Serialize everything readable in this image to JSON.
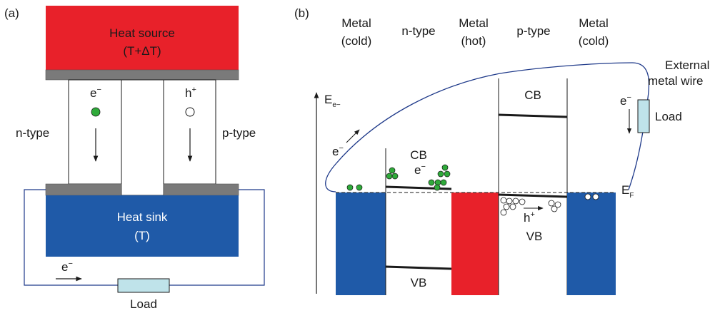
{
  "panel_a": {
    "tag": "(a)",
    "heat_source": {
      "line1": "Heat source",
      "line2": "(T+ΔT)"
    },
    "heat_sink": {
      "line1": "Heat sink",
      "line2": "(T)"
    },
    "n_label": "n-type",
    "p_label": "p-type",
    "electron": {
      "base": "e",
      "sup": "−"
    },
    "hole": {
      "base": "h",
      "sup": "+"
    },
    "wire_electron": {
      "base": "e",
      "sup": "−"
    },
    "load": "Load"
  },
  "panel_b": {
    "tag": "(b)",
    "columns": [
      {
        "line1": "Metal",
        "line2": "(cold)"
      },
      {
        "line1": "n-type",
        "line2": ""
      },
      {
        "line1": "Metal",
        "line2": "(hot)"
      },
      {
        "line1": "p-type",
        "line2": ""
      },
      {
        "line1": "Metal",
        "line2": "(cold)"
      }
    ],
    "energy_axis": {
      "base": "E",
      "sub": "e−"
    },
    "cb_n": "CB",
    "vb_n": "VB",
    "cb_p": "CB",
    "vb_p": "VB",
    "electron_n": {
      "base": "e",
      "sup": "−"
    },
    "hole_p": {
      "base": "h",
      "sup": "+"
    },
    "electron_wire": {
      "base": "e",
      "sup": "−"
    },
    "electron_load": {
      "base": "e",
      "sup": "−"
    },
    "external_wire": {
      "line1": "External",
      "line2": "metal wire"
    },
    "load": "Load",
    "fermi": {
      "base": "E",
      "sub": "F"
    }
  },
  "colors": {
    "heat_source": "#e8212a",
    "heat_sink": "#1f5aa8",
    "contact_gray": "#7a7a7a",
    "load_fill": "#bfe3ea",
    "wire": "#1f3a8a",
    "electron_green": "#2faa3a",
    "metal_blue": "#1f5aa8",
    "metal_red": "#e8212a"
  }
}
